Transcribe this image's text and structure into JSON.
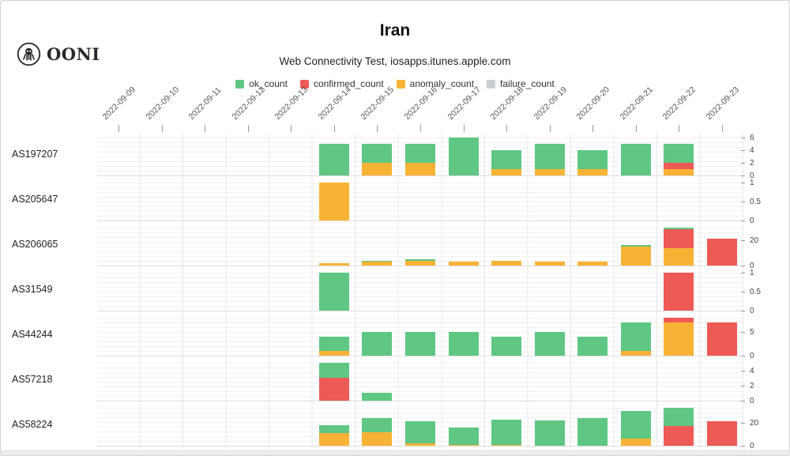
{
  "header": {
    "brand": "OONI"
  },
  "chart_data": {
    "type": "bar",
    "stacked": true,
    "title": "Iran",
    "subtitle": "Web Connectivity Test, iosapps.itunes.apple.com",
    "legend_order": [
      "ok_count",
      "confirmed_count",
      "anomaly_count",
      "failure_count"
    ],
    "colors": {
      "ok_count": "#5fc783",
      "confirmed_count": "#ee5a55",
      "anomaly_count": "#f8b235",
      "failure_count": "#c9cdd1"
    },
    "stack_order": [
      "anomaly_count",
      "confirmed_count",
      "ok_count"
    ],
    "x": [
      "2022-09-09",
      "2022-09-10",
      "2022-09-11",
      "2022-09-12",
      "2022-09-13",
      "2022-09-14",
      "2022-09-15",
      "2022-09-16",
      "2022-09-17",
      "2022-09-18",
      "2022-09-19",
      "2022-09-20",
      "2022-09-21",
      "2022-09-22",
      "2022-09-23"
    ],
    "grid": true,
    "legend_position": "top",
    "facets": [
      {
        "label": "AS197207",
        "ymax": 6,
        "ticks": [
          6,
          4,
          2,
          0
        ],
        "values": {
          "ok_count": [
            0,
            0,
            0,
            0,
            0,
            5,
            3,
            3,
            6,
            3,
            4,
            3,
            5,
            3,
            0
          ],
          "confirmed_count": [
            0,
            0,
            0,
            0,
            0,
            0,
            0,
            0,
            0,
            0,
            0,
            0,
            0,
            1,
            0
          ],
          "anomaly_count": [
            0,
            0,
            0,
            0,
            0,
            0,
            2,
            2,
            0,
            1,
            1,
            1,
            0,
            1,
            0
          ]
        }
      },
      {
        "label": "AS205647",
        "ymax": 1,
        "ticks": [
          1,
          0.5,
          0
        ],
        "values": {
          "ok_count": [
            0,
            0,
            0,
            0,
            0,
            0,
            0,
            0,
            0,
            0,
            0,
            0,
            0,
            0,
            0
          ],
          "confirmed_count": [
            0,
            0,
            0,
            0,
            0,
            0,
            0,
            0,
            0,
            0,
            0,
            0,
            0,
            0,
            0
          ],
          "anomaly_count": [
            0,
            0,
            0,
            0,
            0,
            1,
            0,
            0,
            0,
            0,
            0,
            0,
            0,
            0,
            0
          ]
        }
      },
      {
        "label": "AS206065",
        "ymax": 30,
        "ticks": [
          20,
          0
        ],
        "values": {
          "ok_count": [
            0,
            0,
            0,
            0,
            0,
            0,
            1,
            1,
            0,
            0,
            0,
            0,
            1,
            1,
            0
          ],
          "confirmed_count": [
            0,
            0,
            0,
            0,
            0,
            0,
            0,
            0,
            0,
            0,
            0,
            0,
            0,
            15,
            21
          ],
          "anomaly_count": [
            0,
            0,
            0,
            0,
            0,
            2,
            3,
            4,
            3,
            4,
            3,
            3,
            15,
            14,
            0
          ]
        }
      },
      {
        "label": "AS31549",
        "ymax": 1,
        "ticks": [
          1,
          0.5,
          0
        ],
        "values": {
          "ok_count": [
            0,
            0,
            0,
            0,
            0,
            1,
            0,
            0,
            0,
            0,
            0,
            0,
            0,
            0,
            0
          ],
          "confirmed_count": [
            0,
            0,
            0,
            0,
            0,
            0,
            0,
            0,
            0,
            0,
            0,
            0,
            0,
            1,
            0
          ],
          "anomaly_count": [
            0,
            0,
            0,
            0,
            0,
            0,
            0,
            0,
            0,
            0,
            0,
            0,
            0,
            0,
            0
          ]
        }
      },
      {
        "label": "AS44244",
        "ymax": 8,
        "ticks": [
          5,
          0
        ],
        "values": {
          "ok_count": [
            0,
            0,
            0,
            0,
            0,
            3,
            5,
            5,
            5,
            4,
            5,
            4,
            6,
            0,
            0
          ],
          "confirmed_count": [
            0,
            0,
            0,
            0,
            0,
            0,
            0,
            0,
            0,
            0,
            0,
            0,
            0,
            1,
            7
          ],
          "anomaly_count": [
            0,
            0,
            0,
            0,
            0,
            1,
            0,
            0,
            0,
            0,
            0,
            0,
            1,
            7,
            0
          ]
        }
      },
      {
        "label": "AS57218",
        "ymax": 5,
        "ticks": [
          4,
          2,
          0
        ],
        "values": {
          "ok_count": [
            0,
            0,
            0,
            0,
            0,
            2,
            1,
            0,
            0,
            0,
            0,
            0,
            0,
            0,
            0
          ],
          "confirmed_count": [
            0,
            0,
            0,
            0,
            0,
            3,
            0,
            0,
            0,
            0,
            0,
            0,
            0,
            0,
            0
          ],
          "anomaly_count": [
            0,
            0,
            0,
            0,
            0,
            0,
            0,
            0,
            0,
            0,
            0,
            0,
            0,
            0,
            0
          ]
        }
      },
      {
        "label": "AS58224",
        "ymax": 33,
        "ticks": [
          20,
          0
        ],
        "values": {
          "ok_count": [
            0,
            0,
            0,
            0,
            0,
            7,
            12,
            19,
            15,
            22,
            22,
            24,
            24,
            16,
            0
          ],
          "confirmed_count": [
            0,
            0,
            0,
            0,
            0,
            0,
            0,
            0,
            0,
            0,
            0,
            0,
            0,
            17,
            21
          ],
          "anomaly_count": [
            0,
            0,
            0,
            0,
            0,
            11,
            12,
            2,
            1,
            1,
            0,
            0,
            6,
            0,
            0
          ]
        }
      }
    ]
  }
}
